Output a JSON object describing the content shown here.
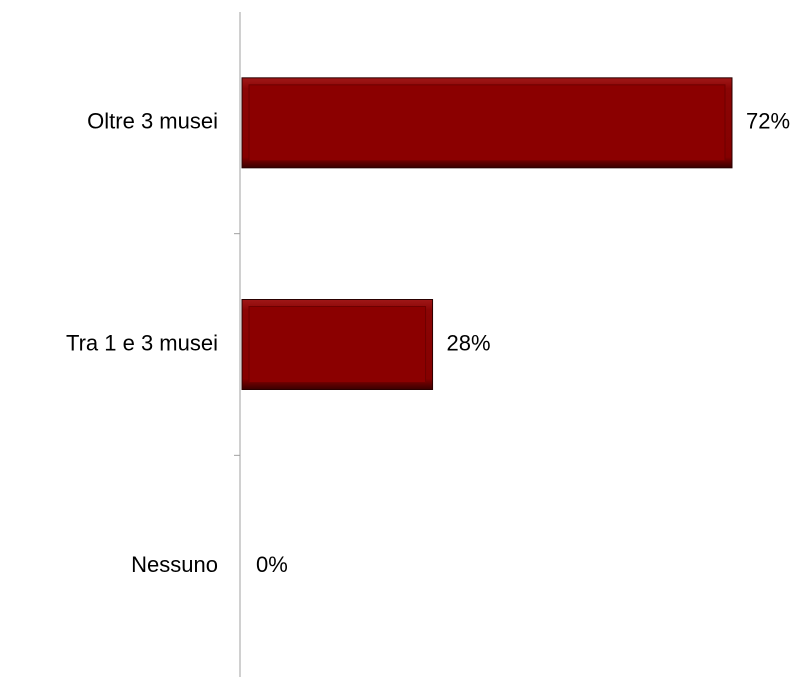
{
  "chart_data": {
    "type": "bar",
    "orientation": "horizontal",
    "categories": [
      "Oltre 3 musei",
      "Tra 1 e 3 musei",
      "Nessuno"
    ],
    "values": [
      72,
      28,
      0
    ],
    "value_labels": [
      "72%",
      "28%",
      "0%"
    ],
    "unit": "%",
    "xlim": [
      0,
      100
    ],
    "title": "",
    "xlabel": "",
    "ylabel": "",
    "grid": false,
    "legend": "none",
    "bar_color": "#8B0000"
  }
}
